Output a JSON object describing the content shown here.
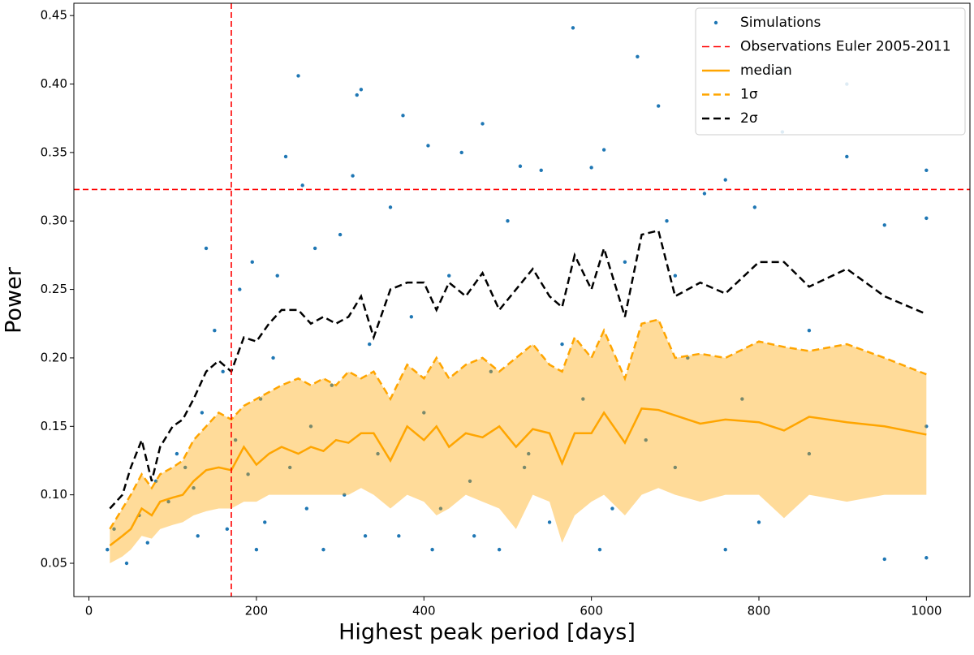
{
  "chart_data": {
    "type": "scatter",
    "xlabel": "Highest peak period [days]",
    "ylabel": "Power",
    "xlim": [
      -18,
      1052
    ],
    "ylim": [
      0.0257,
      0.459
    ],
    "xticks": [
      0,
      200,
      400,
      600,
      800,
      1000
    ],
    "yticks": [
      0.05,
      {
        "value": 0.1,
        "label": "0.10"
      },
      0.15,
      {
        "value": 0.2,
        "label": "0.20"
      },
      0.25,
      {
        "value": 0.3,
        "label": "0.30"
      },
      0.35,
      {
        "value": 0.4,
        "label": "0.40"
      },
      0.45
    ],
    "legend": "upper right",
    "line_x": [
      25,
      40,
      50,
      63,
      75,
      85,
      100,
      112,
      125,
      140,
      155,
      170,
      185,
      200,
      215,
      230,
      250,
      265,
      280,
      295,
      310,
      325,
      340,
      360,
      380,
      400,
      415,
      430,
      450,
      470,
      490,
      510,
      530,
      550,
      565,
      580,
      600,
      615,
      640,
      660,
      680,
      700,
      730,
      760,
      800,
      830,
      860,
      905,
      950,
      1000
    ],
    "reference_lines": {
      "name": "Observations Euler 2005-2011",
      "color": "#ff0000",
      "x": 170,
      "y": 0.323
    },
    "series": [
      {
        "name": "Simulations",
        "type": "scatter",
        "color": "#1f77b4",
        "x": [
          22,
          30,
          45,
          60,
          70,
          80,
          95,
          105,
          115,
          125,
          135,
          140,
          150,
          160,
          165,
          175,
          180,
          190,
          195,
          205,
          210,
          220,
          225,
          235,
          240,
          250,
          255,
          265,
          270,
          280,
          290,
          300,
          305,
          315,
          320,
          325,
          335,
          345,
          360,
          370,
          375,
          385,
          400,
          405,
          420,
          430,
          445,
          455,
          470,
          480,
          490,
          500,
          515,
          525,
          540,
          550,
          565,
          578,
          590,
          600,
          615,
          625,
          640,
          655,
          665,
          680,
          690,
          700,
          715,
          735,
          760,
          780,
          795,
          800,
          828,
          830,
          860,
          905,
          905,
          950,
          950,
          1000,
          1000,
          1000,
          130,
          200,
          260,
          330,
          410,
          460,
          520,
          610,
          700,
          760,
          860,
          1000
        ],
        "values": [
          0.06,
          0.075,
          0.05,
          0.085,
          0.065,
          0.11,
          0.095,
          0.13,
          0.12,
          0.105,
          0.16,
          0.28,
          0.22,
          0.19,
          0.075,
          0.14,
          0.25,
          0.115,
          0.27,
          0.17,
          0.08,
          0.2,
          0.26,
          0.347,
          0.12,
          0.406,
          0.326,
          0.15,
          0.28,
          0.06,
          0.18,
          0.29,
          0.1,
          0.333,
          0.392,
          0.396,
          0.21,
          0.13,
          0.31,
          0.07,
          0.377,
          0.23,
          0.16,
          0.355,
          0.09,
          0.26,
          0.35,
          0.11,
          0.371,
          0.19,
          0.06,
          0.3,
          0.34,
          0.13,
          0.337,
          0.08,
          0.21,
          0.441,
          0.17,
          0.339,
          0.352,
          0.09,
          0.27,
          0.42,
          0.14,
          0.384,
          0.3,
          0.12,
          0.2,
          0.32,
          0.33,
          0.17,
          0.31,
          0.08,
          0.365,
          0.41,
          0.22,
          0.4,
          0.347,
          0.297,
          0.053,
          0.337,
          0.302,
          0.054,
          0.07,
          0.06,
          0.09,
          0.07,
          0.06,
          0.07,
          0.12,
          0.06,
          0.26,
          0.06,
          0.13,
          0.15
        ]
      },
      {
        "name": "median",
        "type": "line",
        "color": "#ffa500",
        "style": "solid",
        "values": [
          0.063,
          0.07,
          0.075,
          0.09,
          0.085,
          0.095,
          0.098,
          0.1,
          0.11,
          0.118,
          0.12,
          0.118,
          0.135,
          0.122,
          0.13,
          0.135,
          0.13,
          0.135,
          0.132,
          0.14,
          0.138,
          0.145,
          0.145,
          0.125,
          0.15,
          0.14,
          0.15,
          0.135,
          0.145,
          0.142,
          0.15,
          0.135,
          0.148,
          0.145,
          0.123,
          0.145,
          0.145,
          0.16,
          0.138,
          0.163,
          0.162,
          0.158,
          0.152,
          0.155,
          0.153,
          0.147,
          0.157,
          0.153,
          0.15,
          0.144
        ]
      },
      {
        "name": "1σ",
        "type": "band",
        "color": "#ffa500",
        "style": "dashed",
        "values": [
          0.075,
          0.09,
          0.1,
          0.115,
          0.105,
          0.115,
          0.12,
          0.125,
          0.14,
          0.15,
          0.16,
          0.155,
          0.165,
          0.17,
          0.175,
          0.18,
          0.185,
          0.18,
          0.185,
          0.18,
          0.19,
          0.185,
          0.19,
          0.17,
          0.195,
          0.185,
          0.2,
          0.185,
          0.195,
          0.2,
          0.19,
          0.2,
          0.21,
          0.195,
          0.19,
          0.215,
          0.2,
          0.22,
          0.185,
          0.225,
          0.228,
          0.2,
          0.203,
          0.2,
          0.212,
          0.208,
          0.205,
          0.21,
          0.2,
          0.188
        ],
        "lower": [
          0.05,
          0.055,
          0.06,
          0.07,
          0.068,
          0.075,
          0.078,
          0.08,
          0.085,
          0.088,
          0.09,
          0.09,
          0.095,
          0.095,
          0.1,
          0.1,
          0.1,
          0.1,
          0.1,
          0.1,
          0.1,
          0.105,
          0.1,
          0.09,
          0.1,
          0.095,
          0.085,
          0.09,
          0.1,
          0.095,
          0.09,
          0.075,
          0.1,
          0.095,
          0.065,
          0.085,
          0.095,
          0.1,
          0.085,
          0.1,
          0.105,
          0.1,
          0.095,
          0.1,
          0.1,
          0.083,
          0.1,
          0.095,
          0.1,
          0.1
        ]
      },
      {
        "name": "2σ",
        "type": "line",
        "color": "#000000",
        "style": "dashed",
        "values": [
          0.09,
          0.1,
          0.12,
          0.14,
          0.11,
          0.135,
          0.15,
          0.155,
          0.17,
          0.19,
          0.198,
          0.19,
          0.215,
          0.212,
          0.225,
          0.235,
          0.235,
          0.225,
          0.23,
          0.225,
          0.23,
          0.245,
          0.215,
          0.25,
          0.255,
          0.255,
          0.235,
          0.255,
          0.245,
          0.262,
          0.235,
          0.25,
          0.265,
          0.245,
          0.237,
          0.275,
          0.25,
          0.28,
          0.23,
          0.29,
          0.293,
          0.245,
          0.255,
          0.247,
          0.27,
          0.27,
          0.252,
          0.265,
          0.245,
          0.232
        ]
      }
    ]
  }
}
